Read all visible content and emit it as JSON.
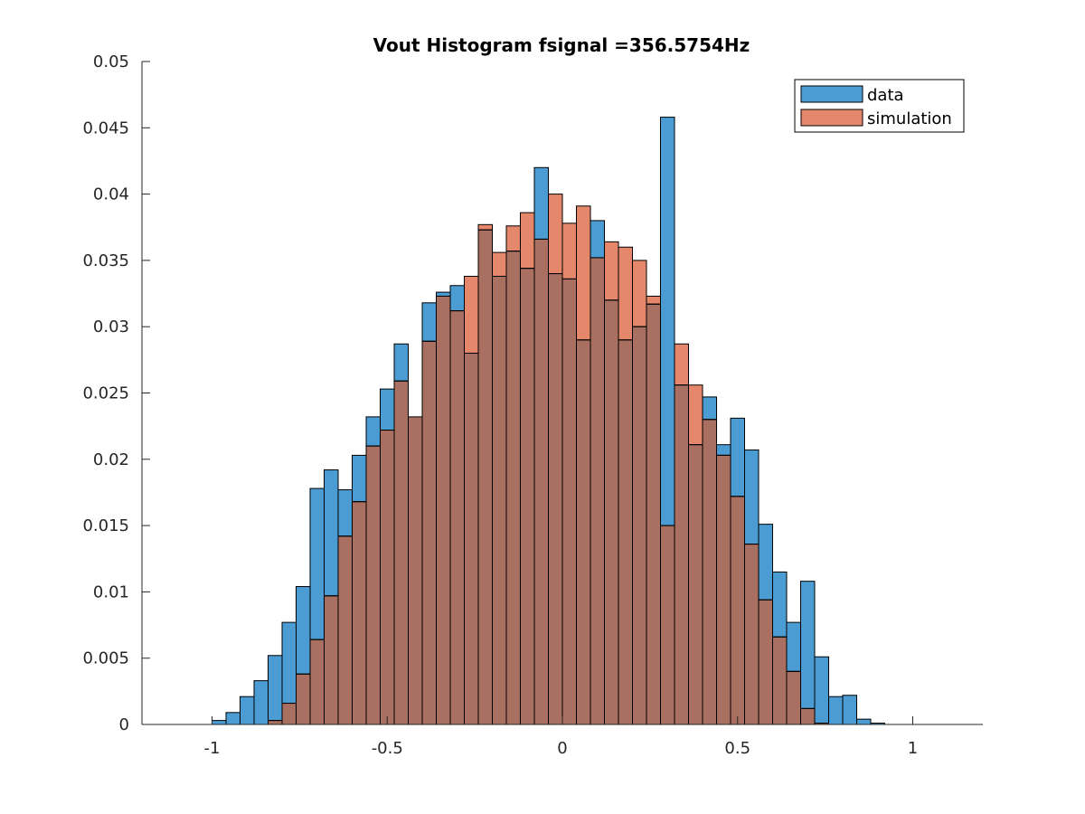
{
  "chart_data": {
    "type": "bar",
    "title": "Vout Histogram fsignal =356.5754Hz",
    "xlabel": "",
    "ylabel": "",
    "xlim": [
      -1.2,
      1.2
    ],
    "ylim": [
      0,
      0.05
    ],
    "xticks": [
      -1,
      -0.5,
      0,
      0.5,
      1
    ],
    "xtick_labels": [
      "-1",
      "-0.5",
      "0",
      "0.5",
      "1"
    ],
    "yticks": [
      0,
      0.005,
      0.01,
      0.015,
      0.02,
      0.025,
      0.03,
      0.035,
      0.04,
      0.045,
      0.05
    ],
    "ytick_labels": [
      "0",
      "0.005",
      "0.01",
      "0.015",
      "0.02",
      "0.025",
      "0.03",
      "0.035",
      "0.04",
      "0.045",
      "0.05"
    ],
    "grid": false,
    "legend_position": "top-right",
    "bin_width": 0.04,
    "bin_edges_start": -1.0,
    "series": [
      {
        "name": "data",
        "color": "#4B9CD3",
        "values": [
          0.0003,
          0.0009,
          0.0021,
          0.0033,
          0.0052,
          0.0077,
          0.0104,
          0.0178,
          0.0192,
          0.0177,
          0.0203,
          0.0232,
          0.0253,
          0.0287,
          0.0232,
          0.0318,
          0.0326,
          0.0331,
          0.028,
          0.0373,
          0.0338,
          0.0357,
          0.0344,
          0.042,
          0.034,
          0.0336,
          0.029,
          0.038,
          0.032,
          0.029,
          0.03,
          0.0317,
          0.0458,
          0.0256,
          0.0211,
          0.0247,
          0.0211,
          0.0231,
          0.0207,
          0.0151,
          0.0115,
          0.0077,
          0.0108,
          0.0051,
          0.0021,
          0.0022,
          0.0004,
          0.0001
        ]
      },
      {
        "name": "simulation",
        "color": "#E4876A",
        "values": [
          0,
          0,
          0,
          0,
          0.0003,
          0.0016,
          0.0038,
          0.0064,
          0.0097,
          0.0142,
          0.0168,
          0.021,
          0.0222,
          0.0259,
          0.0232,
          0.0289,
          0.0323,
          0.0312,
          0.0338,
          0.0377,
          0.0356,
          0.0376,
          0.0386,
          0.0366,
          0.04,
          0.0378,
          0.0391,
          0.0352,
          0.0364,
          0.036,
          0.035,
          0.0323,
          0.015,
          0.0287,
          0.0256,
          0.023,
          0.0203,
          0.0172,
          0.0136,
          0.0094,
          0.0066,
          0.004,
          0.0012,
          0.0001,
          0,
          0,
          0,
          0
        ]
      }
    ],
    "overlap_color": "#A97061"
  }
}
